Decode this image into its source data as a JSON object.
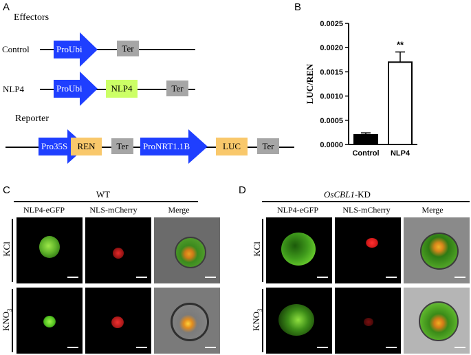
{
  "panel_a": {
    "letter": "A",
    "effectors_title": "Effectors",
    "reporter_title": "Reporter",
    "constructs": [
      {
        "label": "Control",
        "elements": [
          "ProUbi",
          "Ter"
        ]
      },
      {
        "label": "NLP4",
        "elements": [
          "ProUbi",
          "NLP4",
          "Ter"
        ]
      },
      {
        "label": "",
        "elements": [
          "Pro35S",
          "REN",
          "Ter",
          "ProNRT1.1B",
          "LUC",
          "Ter"
        ]
      }
    ],
    "colors": {
      "promoter": "#1f3fff",
      "terminator": "#a6a6a6",
      "reporter_gene": "#f9c86b",
      "nlp4": "#ccff66"
    }
  },
  "panel_b": {
    "letter": "B",
    "significance": "**"
  },
  "chart_data": {
    "type": "bar",
    "categories": [
      "Control",
      "NLP4"
    ],
    "values": [
      0.0002,
      0.0017
    ],
    "errors": [
      4e-05,
      0.00021
    ],
    "ylabel": "LUC/REN",
    "ylim": [
      0,
      0.0025
    ],
    "yticks": [
      "0.0000",
      "0.0005",
      "0.0010",
      "0.0015",
      "0.0020",
      "0.0025"
    ],
    "bar_fills": [
      "#000000",
      "#ffffff"
    ],
    "annotations": [
      {
        "category": "NLP4",
        "text": "**"
      }
    ]
  },
  "panel_c": {
    "letter": "C",
    "genotype": "WT",
    "columns": [
      "NLP4-eGFP",
      "NLS-mCherry",
      "Merge"
    ],
    "rows": [
      "KCl",
      "KNO",
      "3"
    ]
  },
  "panel_d": {
    "letter": "D",
    "genotype_italic": "OsCBL1",
    "genotype_suffix": "-KD",
    "columns": [
      "NLP4-eGFP",
      "NLS-mCherry",
      "Merge"
    ],
    "rows": [
      "KCl",
      "KNO",
      "3"
    ]
  }
}
